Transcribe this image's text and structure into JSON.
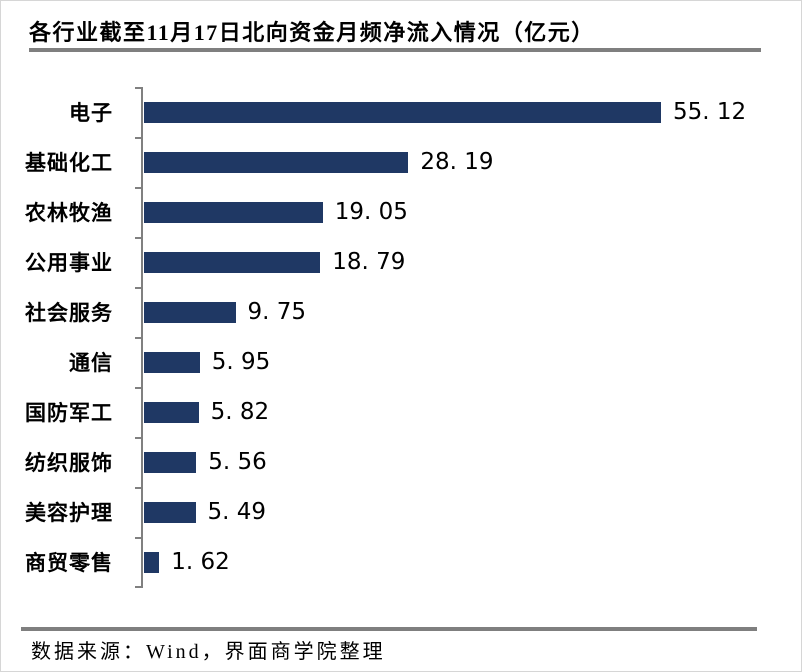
{
  "page": {
    "title": "各行业截至11月17日北向资金月频净流入情况（亿元）",
    "source_note": "数据来源：Wind，界面商学院整理"
  },
  "chart_data": {
    "type": "bar",
    "orientation": "horizontal",
    "title": "各行业截至11月17日北向资金月频净流入情况（亿元）",
    "unit": "亿元",
    "categories": [
      "电子",
      "基础化工",
      "农林牧渔",
      "公用事业",
      "社会服务",
      "通信",
      "国防军工",
      "纺织服饰",
      "美容护理",
      "商贸零售"
    ],
    "values": [
      55.12,
      28.19,
      19.05,
      18.79,
      9.75,
      5.95,
      5.82,
      5.56,
      5.49,
      1.62
    ],
    "value_labels": [
      "55. 12",
      "28. 19",
      "19. 05",
      "18. 79",
      "9. 75",
      "5. 95",
      "5. 82",
      "5. 56",
      "5. 49",
      "1. 62"
    ],
    "xlim": [
      0,
      60
    ],
    "grid": false,
    "legend": "none",
    "value_labels_position": "end-of-bar",
    "colors": {
      "bar": "#1F3864",
      "axis": "#808080",
      "rule": "#7F7F7F",
      "text": "#000000",
      "border": "#D6D6D6"
    }
  }
}
